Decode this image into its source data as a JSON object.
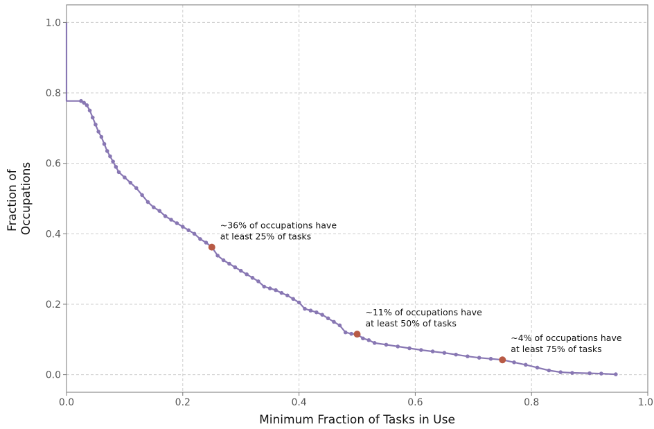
{
  "chart_data": {
    "type": "line",
    "title": "",
    "xlabel": "Minimum Fraction of Tasks in Use",
    "ylabel_lines": [
      "Fraction of",
      "Occupations"
    ],
    "xlim": [
      0.0,
      1.0
    ],
    "ylim": [
      -0.05,
      1.05
    ],
    "x_ticks": [
      0.0,
      0.2,
      0.4,
      0.6,
      0.8,
      1.0
    ],
    "x_tick_labels": [
      "0.0",
      "0.2",
      "0.4",
      "0.6",
      "0.8",
      "1.0"
    ],
    "y_ticks": [
      0.0,
      0.2,
      0.4,
      0.6,
      0.8,
      1.0
    ],
    "y_tick_labels": [
      "0.0",
      "0.2",
      "0.4",
      "0.6",
      "0.8",
      "1.0"
    ],
    "grid": true,
    "series": [
      {
        "color": "#8877b3",
        "points": [
          [
            0.0,
            1.0
          ],
          [
            0.0,
            0.777
          ],
          [
            0.025,
            0.777
          ],
          [
            0.03,
            0.772
          ],
          [
            0.035,
            0.765
          ],
          [
            0.04,
            0.75
          ],
          [
            0.045,
            0.73
          ],
          [
            0.05,
            0.71
          ],
          [
            0.055,
            0.69
          ],
          [
            0.06,
            0.675
          ],
          [
            0.065,
            0.655
          ],
          [
            0.07,
            0.635
          ],
          [
            0.075,
            0.62
          ],
          [
            0.08,
            0.605
          ],
          [
            0.085,
            0.59
          ],
          [
            0.09,
            0.575
          ],
          [
            0.1,
            0.56
          ],
          [
            0.11,
            0.545
          ],
          [
            0.12,
            0.53
          ],
          [
            0.13,
            0.51
          ],
          [
            0.14,
            0.49
          ],
          [
            0.15,
            0.475
          ],
          [
            0.16,
            0.465
          ],
          [
            0.17,
            0.45
          ],
          [
            0.18,
            0.44
          ],
          [
            0.19,
            0.43
          ],
          [
            0.2,
            0.42
          ],
          [
            0.21,
            0.41
          ],
          [
            0.22,
            0.4
          ],
          [
            0.23,
            0.385
          ],
          [
            0.24,
            0.375
          ],
          [
            0.25,
            0.362
          ],
          [
            0.26,
            0.338
          ],
          [
            0.27,
            0.325
          ],
          [
            0.28,
            0.315
          ],
          [
            0.29,
            0.305
          ],
          [
            0.3,
            0.295
          ],
          [
            0.31,
            0.285
          ],
          [
            0.32,
            0.275
          ],
          [
            0.33,
            0.265
          ],
          [
            0.34,
            0.25
          ],
          [
            0.35,
            0.245
          ],
          [
            0.36,
            0.24
          ],
          [
            0.37,
            0.232
          ],
          [
            0.38,
            0.225
          ],
          [
            0.39,
            0.215
          ],
          [
            0.4,
            0.205
          ],
          [
            0.41,
            0.187
          ],
          [
            0.42,
            0.182
          ],
          [
            0.43,
            0.177
          ],
          [
            0.44,
            0.17
          ],
          [
            0.45,
            0.16
          ],
          [
            0.46,
            0.15
          ],
          [
            0.47,
            0.14
          ],
          [
            0.48,
            0.12
          ],
          [
            0.49,
            0.116
          ],
          [
            0.5,
            0.115
          ],
          [
            0.51,
            0.103
          ],
          [
            0.52,
            0.098
          ],
          [
            0.53,
            0.09
          ],
          [
            0.55,
            0.085
          ],
          [
            0.57,
            0.08
          ],
          [
            0.59,
            0.075
          ],
          [
            0.61,
            0.07
          ],
          [
            0.63,
            0.066
          ],
          [
            0.65,
            0.062
          ],
          [
            0.67,
            0.057
          ],
          [
            0.69,
            0.052
          ],
          [
            0.71,
            0.048
          ],
          [
            0.73,
            0.045
          ],
          [
            0.75,
            0.042
          ],
          [
            0.77,
            0.035
          ],
          [
            0.79,
            0.028
          ],
          [
            0.81,
            0.02
          ],
          [
            0.83,
            0.012
          ],
          [
            0.85,
            0.007
          ],
          [
            0.87,
            0.005
          ],
          [
            0.9,
            0.004
          ],
          [
            0.92,
            0.003
          ],
          [
            0.945,
            0.001
          ]
        ]
      }
    ],
    "highlights": [
      {
        "x": 0.25,
        "y": 0.362,
        "lines": [
          "~36% of occupations have",
          "at least 25% of tasks"
        ]
      },
      {
        "x": 0.5,
        "y": 0.115,
        "lines": [
          "~11% of occupations have",
          "at least 50% of tasks"
        ]
      },
      {
        "x": 0.75,
        "y": 0.042,
        "lines": [
          "~4% of occupations have",
          "at least 75% of tasks"
        ]
      }
    ],
    "highlight_color": "#b85a45"
  }
}
